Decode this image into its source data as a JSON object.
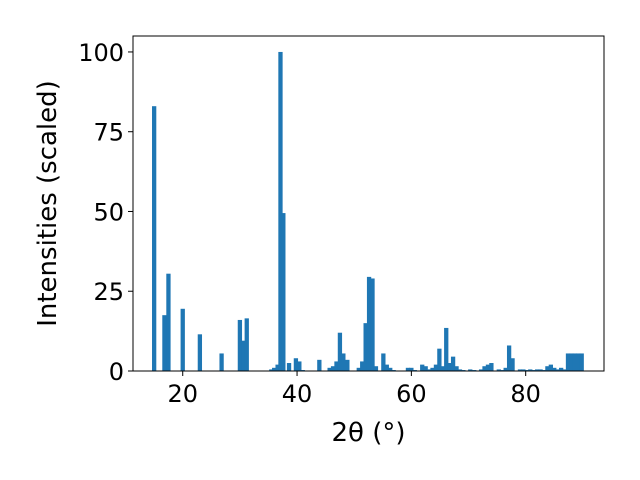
{
  "chart_data": {
    "type": "bar",
    "title": "",
    "xlabel": "2θ (°)",
    "ylabel": "Intensities (scaled)",
    "xlim": [
      11.3,
      93.7
    ],
    "ylim": [
      0,
      105
    ],
    "bar_width": 0.75,
    "color": "#1f77b4",
    "grid": false,
    "x_ticks": [
      20,
      40,
      60,
      80
    ],
    "y_ticks": [
      0,
      25,
      50,
      75,
      100
    ],
    "x": [
      15.0,
      16.8,
      17.5,
      20.0,
      23.0,
      26.8,
      30.0,
      30.6,
      31.2,
      35.5,
      36.0,
      36.6,
      37.1,
      37.6,
      38.6,
      39.8,
      40.4,
      41.0,
      43.9,
      45.7,
      46.3,
      46.9,
      47.5,
      48.1,
      48.8,
      50.8,
      51.4,
      52.0,
      52.6,
      53.2,
      53.8,
      55.1,
      55.7,
      56.3,
      56.9,
      59.4,
      60.0,
      60.6,
      61.9,
      62.5,
      63.1,
      63.7,
      64.3,
      64.9,
      65.5,
      66.1,
      66.7,
      67.3,
      67.9,
      68.5,
      69.1,
      70.3,
      71.0,
      72.2,
      72.8,
      73.4,
      74.0,
      75.3,
      75.9,
      76.5,
      77.1,
      77.7,
      79.0,
      79.6,
      80.2,
      80.8,
      81.4,
      82.0,
      82.6,
      83.2,
      83.8,
      84.4,
      85.0,
      85.6,
      86.2,
      86.8,
      87.4,
      88.0,
      88.6,
      89.2,
      89.8
    ],
    "values": [
      83.0,
      17.5,
      30.5,
      19.5,
      11.5,
      5.5,
      16.0,
      9.5,
      16.5,
      0.5,
      1.0,
      2.0,
      100.0,
      49.5,
      2.5,
      4.0,
      3.0,
      0.3,
      3.5,
      1.0,
      1.5,
      3.0,
      12.0,
      5.5,
      3.5,
      1.0,
      3.0,
      15.0,
      29.5,
      29.0,
      1.5,
      5.5,
      2.0,
      1.0,
      0.3,
      1.0,
      1.0,
      0.3,
      2.0,
      1.5,
      0.5,
      1.0,
      2.0,
      7.0,
      1.5,
      13.5,
      2.5,
      4.5,
      1.5,
      0.5,
      0.3,
      0.5,
      0.3,
      0.5,
      1.5,
      2.0,
      2.5,
      0.5,
      0.3,
      1.0,
      8.0,
      4.0,
      0.5,
      0.5,
      0.3,
      0.5,
      0.3,
      0.5,
      0.5,
      0.3,
      1.5,
      2.0,
      1.0,
      0.5,
      1.0,
      0.5,
      5.5,
      5.5,
      5.5,
      5.5,
      5.5
    ]
  }
}
